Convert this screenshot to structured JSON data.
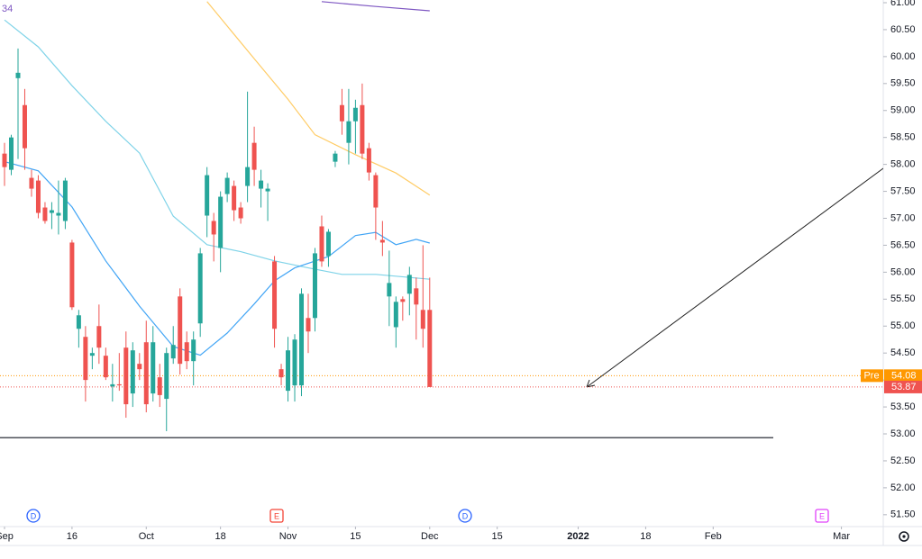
{
  "chart_data": {
    "type": "candlestick",
    "indicator_label": "34",
    "up_color": "#26a69a",
    "down_color": "#ef5350",
    "x": [
      0,
      1,
      2,
      3,
      4,
      5,
      6,
      7,
      8,
      9,
      10,
      11,
      12,
      13,
      14,
      15,
      16,
      17,
      18,
      19,
      20,
      21,
      22,
      23,
      24,
      25,
      26,
      27,
      28,
      29,
      30,
      31,
      32,
      33,
      34,
      35,
      36,
      37,
      38,
      39,
      40,
      41,
      42,
      43,
      44,
      45,
      46,
      47,
      48,
      49,
      50,
      51,
      52,
      53,
      54,
      55,
      56,
      57,
      58,
      59,
      60,
      61,
      62,
      63
    ],
    "open": [
      58.2,
      57.9,
      59.6,
      59.1,
      57.75,
      57.7,
      57.2,
      57.1,
      57.05,
      56.95,
      56.55,
      54.95,
      54.8,
      54.45,
      55.0,
      54.45,
      53.88,
      53.92,
      54.6,
      53.75,
      54.3,
      54.7,
      53.75,
      54.05,
      53.65,
      54.4,
      55.55,
      54.7,
      54.35,
      55.05,
      57.05,
      56.95,
      56.45,
      57.45,
      57.6,
      57.2,
      57.6,
      58.4,
      57.55,
      57.5,
      56.2,
      54.2,
      53.8,
      53.9,
      53.9,
      55.15,
      55.15,
      56.85,
      56.3,
      58.05,
      59.1,
      58.4,
      58.8,
      59.1,
      58.3,
      57.8,
      56.6,
      55.55,
      54.98,
      55.5,
      55.6,
      55.7,
      55.3,
      55.3
    ],
    "high": [
      58.4,
      58.55,
      60.15,
      59.4,
      57.9,
      57.8,
      57.3,
      57.3,
      57.7,
      57.75,
      56.6,
      55.3,
      55.0,
      54.6,
      55.4,
      54.6,
      54.3,
      54.5,
      54.9,
      54.7,
      54.5,
      55.1,
      55.0,
      54.3,
      54.6,
      55.0,
      55.7,
      54.9,
      54.9,
      56.45,
      57.95,
      57.1,
      57.5,
      57.85,
      57.7,
      57.3,
      59.35,
      58.7,
      57.9,
      57.65,
      56.3,
      54.3,
      54.8,
      54.85,
      55.7,
      55.6,
      56.45,
      57.05,
      56.8,
      58.25,
      59.4,
      59.4,
      59.2,
      59.5,
      58.4,
      57.85,
      56.95,
      56.4,
      55.55,
      55.55,
      56.1,
      55.9,
      56.5,
      55.9
    ],
    "low": [
      57.6,
      57.8,
      58.1,
      57.9,
      57.4,
      57.0,
      56.9,
      56.8,
      56.7,
      56.8,
      55.3,
      54.6,
      53.6,
      54.2,
      54.3,
      54.0,
      53.6,
      53.8,
      53.3,
      53.5,
      54.0,
      53.4,
      53.6,
      53.5,
      53.05,
      54.3,
      54.1,
      54.2,
      53.9,
      54.8,
      56.65,
      56.2,
      56.0,
      57.3,
      56.95,
      56.9,
      57.3,
      57.6,
      57.2,
      56.95,
      54.6,
      53.9,
      53.6,
      53.6,
      53.7,
      54.5,
      54.9,
      56.1,
      56.1,
      57.95,
      58.55,
      58.0,
      58.2,
      58.1,
      57.7,
      56.6,
      56.3,
      55.0,
      54.6,
      55.1,
      55.2,
      54.75,
      54.6,
      53.87
    ],
    "close": [
      57.95,
      58.5,
      59.7,
      58.3,
      57.55,
      57.1,
      56.95,
      57.15,
      57.1,
      57.7,
      55.35,
      55.2,
      54.0,
      54.5,
      54.6,
      54.05,
      53.92,
      53.9,
      53.55,
      54.55,
      54.2,
      53.55,
      54.7,
      53.72,
      54.5,
      54.65,
      54.3,
      54.35,
      54.75,
      56.35,
      57.8,
      56.7,
      57.4,
      57.75,
      57.15,
      57.0,
      57.95,
      57.9,
      57.7,
      57.55,
      54.95,
      54.05,
      54.55,
      54.75,
      55.6,
      54.9,
      56.35,
      56.2,
      56.75,
      58.2,
      58.8,
      58.8,
      59.05,
      58.2,
      57.85,
      57.2,
      56.55,
      55.8,
      55.45,
      55.45,
      55.95,
      55.4,
      54.95,
      53.87
    ],
    "series": [
      {
        "color": "#7fd3e8",
        "x": [
          0,
          5,
          10,
          15,
          20,
          25,
          30,
          35,
          40,
          45,
          50,
          55,
          63
        ],
        "values": [
          60.68,
          60.18,
          59.46,
          58.8,
          58.21,
          57.04,
          56.51,
          56.38,
          56.21,
          56.08,
          55.96,
          55.96,
          55.87
        ]
      },
      {
        "color": "#42a5f5",
        "x": [
          0,
          5,
          10,
          15,
          20,
          25,
          29,
          33,
          37,
          40,
          43,
          48,
          52,
          55,
          58,
          61,
          63
        ],
        "values": [
          58.05,
          57.88,
          57.21,
          56.21,
          55.37,
          54.62,
          54.46,
          54.87,
          55.41,
          55.84,
          56.08,
          56.29,
          56.68,
          56.74,
          56.51,
          56.61,
          56.54
        ]
      },
      {
        "color": "#ffcc66",
        "x": [
          30,
          37,
          42,
          46,
          52,
          58,
          63
        ],
        "values": [
          61.02,
          59.96,
          59.21,
          58.55,
          58.18,
          57.84,
          57.43
        ]
      },
      {
        "color": "#7e57c2",
        "x": [
          47,
          55,
          63
        ],
        "values": [
          61.02,
          60.93,
          60.85
        ]
      }
    ],
    "hline": 52.93,
    "price_labels": [
      {
        "tag": "Pre",
        "value": 54.08,
        "color": "#ff9800"
      },
      {
        "value": 53.87,
        "color": "#ef5350"
      }
    ],
    "events": [
      {
        "label": "D",
        "color": "#2962ff"
      },
      {
        "label": "E",
        "color": "#f44336"
      },
      {
        "label": "D",
        "color": "#2962ff"
      },
      {
        "label": "E",
        "color": "#e040fb"
      }
    ],
    "xlim": [
      -0.67,
      130.2
    ],
    "xticks": [
      {
        "value": 0,
        "label": "Sep"
      },
      {
        "value": 10,
        "label": "16"
      },
      {
        "value": 21,
        "label": "Oct"
      },
      {
        "value": 32,
        "label": "18"
      },
      {
        "value": 42,
        "label": "Nov"
      },
      {
        "value": 52,
        "label": "15"
      },
      {
        "value": 63,
        "label": "Dec"
      },
      {
        "value": 73,
        "label": "15"
      },
      {
        "value": 85,
        "label": "2022"
      },
      {
        "value": 95,
        "label": "18"
      },
      {
        "value": 105,
        "label": "Feb"
      },
      {
        "value": 124,
        "label": "Mar"
      }
    ],
    "ylim": [
      51.28,
      61.05
    ],
    "yticks": [
      {
        "value": 51.5,
        "label": "51.50"
      },
      {
        "value": 52,
        "label": "52.00"
      },
      {
        "value": 52.5,
        "label": "52.50"
      },
      {
        "value": 53,
        "label": "53.00"
      },
      {
        "value": 53.5,
        "label": "53.50"
      },
      {
        "value": 54,
        "label": "54.00"
      },
      {
        "value": 54.5,
        "label": "54.50"
      },
      {
        "value": 55,
        "label": "55.00"
      },
      {
        "value": 55.5,
        "label": "55.50"
      },
      {
        "value": 56,
        "label": "56.00"
      },
      {
        "value": 56.5,
        "label": "56.50"
      },
      {
        "value": 57,
        "label": "57.00"
      },
      {
        "value": 57.5,
        "label": "57.50"
      },
      {
        "value": 58,
        "label": "58.00"
      },
      {
        "value": 58.5,
        "label": "58.50"
      },
      {
        "value": 59,
        "label": "59.00"
      },
      {
        "value": 59.5,
        "label": "59.50"
      },
      {
        "value": 60,
        "label": "60.00"
      },
      {
        "value": 60.5,
        "label": "60.50"
      },
      {
        "value": 61,
        "label": "61.00"
      }
    ]
  }
}
